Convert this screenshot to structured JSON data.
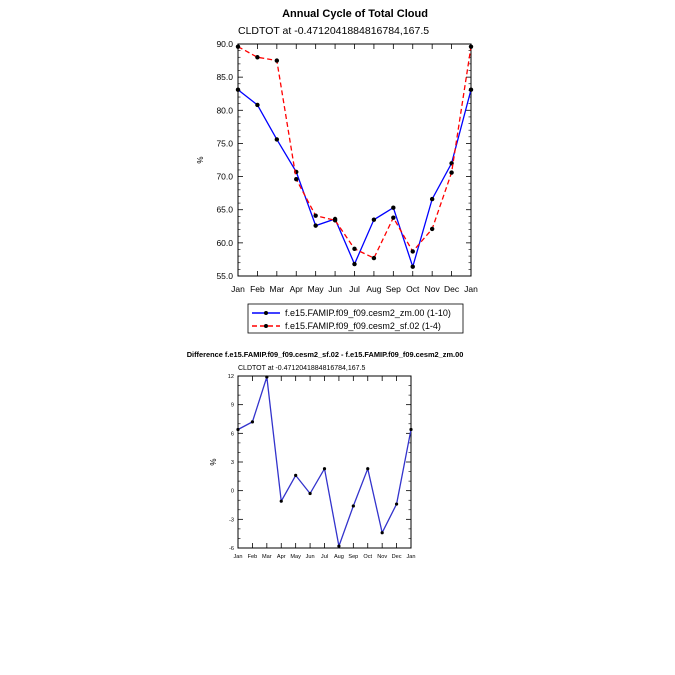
{
  "chart_data": [
    {
      "type": "line",
      "title": "Annual Cycle of Total Cloud",
      "subtitle": "CLDTOT at -0.4712041884816784,167.5",
      "xlabel": "",
      "ylabel": "%",
      "categories": [
        "Jan",
        "Feb",
        "Mar",
        "Apr",
        "May",
        "Jun",
        "Jul",
        "Aug",
        "Sep",
        "Oct",
        "Nov",
        "Dec",
        "Jan"
      ],
      "ylim": [
        55.0,
        90.0
      ],
      "yticks": [
        "55.0",
        "60.0",
        "65.0",
        "70.0",
        "75.0",
        "80.0",
        "85.0",
        "90.0"
      ],
      "legend_position": "below-plot",
      "series": [
        {
          "name": "f.e15.FAMIP.f09_f09.cesm2_zm.00 (1-10)",
          "color": "#0000ff",
          "style": "solid",
          "values": [
            83.1,
            80.8,
            75.6,
            70.7,
            62.6,
            63.6,
            56.8,
            63.5,
            65.3,
            56.4,
            66.6,
            72.0,
            83.1
          ]
        },
        {
          "name": "f.e15.FAMIP.f09_f09.cesm2_sf.02 (1-4)",
          "color": "#ff0000",
          "style": "dashed",
          "values": [
            89.6,
            88.0,
            87.5,
            69.6,
            64.1,
            63.4,
            59.1,
            57.7,
            63.8,
            58.7,
            62.1,
            70.6,
            89.6
          ]
        }
      ]
    },
    {
      "type": "line",
      "title": "Difference f.e15.FAMIP.f09_f09.cesm2_sf.02 - f.e15.FAMIP.f09_f09.cesm2_zm.00",
      "subtitle": "CLDTOT at -0.4712041884816784,167.5",
      "xlabel": "",
      "ylabel": "%",
      "categories": [
        "Jan",
        "Feb",
        "Mar",
        "Apr",
        "May",
        "Jun",
        "Jul",
        "Aug",
        "Sep",
        "Oct",
        "Nov",
        "Dec",
        "Jan"
      ],
      "ylim": [
        -6,
        12
      ],
      "yticks": [
        "-6",
        "-3",
        "0",
        "3",
        "6",
        "9",
        "12"
      ],
      "series": [
        {
          "name": "",
          "color": "#3333cc",
          "style": "solid",
          "values": [
            6.4,
            7.2,
            11.9,
            -1.1,
            1.6,
            -0.3,
            2.3,
            -5.8,
            -1.6,
            2.3,
            -4.4,
            -1.4,
            6.4
          ]
        }
      ]
    }
  ]
}
